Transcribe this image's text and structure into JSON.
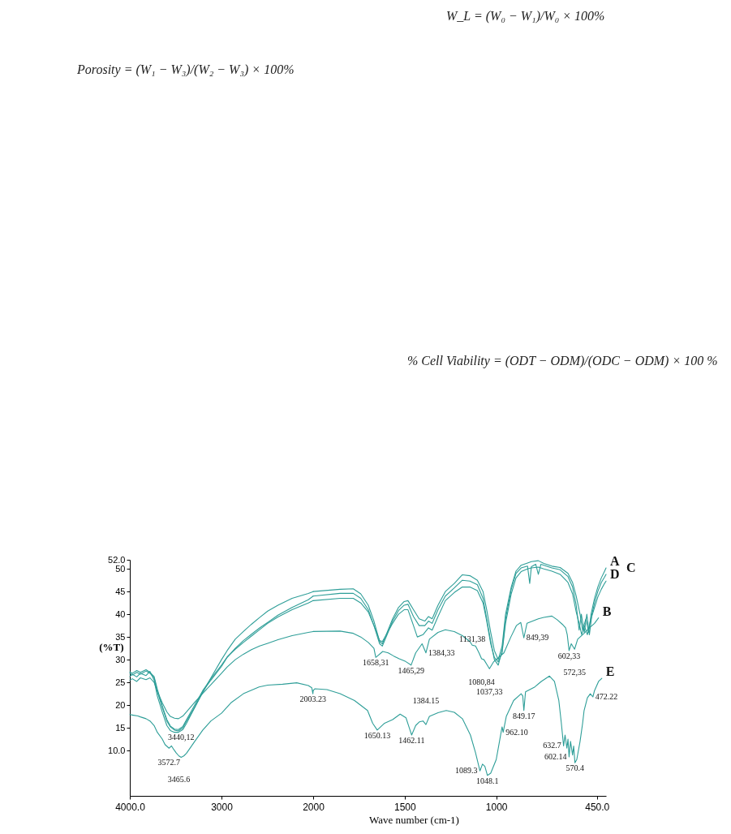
{
  "chart_data": [
    {
      "type": "line",
      "ylabel": "(%T)",
      "xlim": [
        4000,
        2000
      ],
      "xticks": [
        {
          "value": 4000,
          "label": "4000.0"
        },
        3000,
        2000
      ],
      "ylim": [
        0,
        52
      ],
      "yticks": [
        {
          "value": 52,
          "label": "52.0"
        },
        50,
        45,
        40,
        35,
        30,
        25,
        20,
        15,
        {
          "value": 10,
          "label": "10.0"
        }
      ],
      "grid": false,
      "series": [
        {
          "color": "#2e9e98",
          "x": [
            4000,
            3973,
            3924,
            3885,
            3823,
            3780,
            3735,
            3700,
            3646,
            3596,
            3558,
            3513,
            3469,
            3421,
            3381,
            3292,
            3204,
            3115,
            3000,
            2938,
            2850,
            2761,
            2673,
            2584,
            2496,
            2384,
            2230,
            2053,
            2000
          ],
          "values": [
            27.0,
            26.6,
            27.2,
            26.8,
            27.5,
            27.0,
            26.0,
            23.0,
            19.5,
            16.5,
            15.2,
            14.5,
            14.3,
            15.0,
            16.5,
            19.5,
            22.8,
            26.0,
            30.0,
            32.0,
            34.5,
            36.2,
            37.8,
            39.3,
            40.7,
            42.0,
            43.5,
            44.6,
            45.0
          ]
        },
        {
          "color": "#2e9e98",
          "x": [
            4000,
            3973,
            3924,
            3885,
            3823,
            3780,
            3735,
            3700,
            3646,
            3596,
            3558,
            3513,
            3469,
            3421,
            3381,
            3292,
            3204,
            3115,
            3000,
            2938,
            2850,
            2761,
            2673,
            2584,
            2496,
            2384,
            2230,
            2053,
            2000
          ],
          "values": [
            25.5,
            25.8,
            25.2,
            26.0,
            25.6,
            26.0,
            25.0,
            23.0,
            20.5,
            18.5,
            17.5,
            17.1,
            17.0,
            17.6,
            18.5,
            20.6,
            22.6,
            24.5,
            27.0,
            28.4,
            30.0,
            31.2,
            32.2,
            33.0,
            33.6,
            34.4,
            35.3,
            36.0,
            36.2
          ]
        },
        {
          "color": "#2e9e98",
          "x": [
            4000,
            3973,
            3924,
            3885,
            3823,
            3780,
            3735,
            3700,
            3646,
            3596,
            3558,
            3513,
            3469,
            3421,
            3381,
            3292,
            3204,
            3115,
            3000,
            2938,
            2850,
            2761,
            2673,
            2584,
            2496,
            2384,
            2230,
            2053,
            2000
          ],
          "values": [
            26.3,
            26.8,
            26.2,
            27.0,
            26.5,
            27.4,
            25.5,
            22.0,
            18.5,
            15.5,
            14.4,
            14.0,
            14.0,
            14.6,
            16.0,
            19.5,
            23.0,
            25.5,
            28.5,
            30.5,
            32.5,
            34.2,
            35.6,
            37.0,
            38.2,
            39.8,
            41.5,
            43.2,
            44.0
          ]
        },
        {
          "color": "#2e9e98",
          "x": [
            4000,
            3973,
            3924,
            3885,
            3823,
            3780,
            3735,
            3700,
            3646,
            3596,
            3558,
            3513,
            3469,
            3421,
            3381,
            3292,
            3204,
            3115,
            3000,
            2938,
            2850,
            2761,
            2673,
            2584,
            2496,
            2384,
            2230,
            2053,
            2000
          ],
          "values": [
            27.3,
            27.0,
            27.6,
            27.2,
            27.8,
            27.2,
            26.3,
            23.5,
            19.8,
            16.8,
            15.4,
            14.7,
            14.6,
            15.3,
            16.8,
            20.0,
            23.2,
            25.8,
            28.8,
            30.6,
            32.3,
            33.8,
            35.2,
            36.6,
            38.0,
            39.4,
            41.0,
            42.5,
            43.0
          ]
        },
        {
          "color": "#2e9e98",
          "x": [
            4000,
            3973,
            3912,
            3885,
            3823,
            3780,
            3735,
            3700,
            3646,
            3616,
            3572,
            3545,
            3520,
            3495,
            3465,
            3440,
            3411,
            3381,
            3292,
            3204,
            3115,
            3000,
            2897,
            2761,
            2590,
            2496,
            2333,
            2179,
            2053,
            2015,
            2003,
            2000
          ],
          "values": [
            17.9,
            17.8,
            17.6,
            17.4,
            17.0,
            16.5,
            15.5,
            14.0,
            12.5,
            11.3,
            10.5,
            11.0,
            10.2,
            9.5,
            8.8,
            8.5,
            8.8,
            9.4,
            12.0,
            14.5,
            16.5,
            18.2,
            20.5,
            22.5,
            24.0,
            24.4,
            24.6,
            24.9,
            24.3,
            23.8,
            22.5,
            23.2
          ]
        }
      ],
      "annotations": [
        "W_L = (W₀ − W₁)/W₀ × 100%",
        "Porosity = (W₁ − W₃)/(W₂ − W₃) × 100%",
        "% Cell Viability = (ODT − ODM)/(ODC − ODM) × 100 %",
        {
          "text": "3440,12",
          "x": 3440,
          "y": 14.2
        },
        {
          "text": "3572.7",
          "x": 3572,
          "y": 10.5
        },
        {
          "text": "3465.6",
          "x": 3465,
          "y": 8.8
        },
        {
          "text": "2003.23",
          "x": 2003,
          "y": 22.5
        }
      ]
    },
    {
      "type": "line",
      "xlabel": "Wave number (cm-1)",
      "xlim": [
        2000,
        400
      ],
      "xticks": [
        1500,
        1000,
        {
          "value": 450,
          "label": "450.0"
        }
      ],
      "ylim": [
        0,
        52
      ],
      "tick_labels": "x",
      "grid": false,
      "series": [
        {
          "name": "A",
          "color": "#2e9e98",
          "x": [
            2000,
            1853,
            1781,
            1740,
            1699,
            1668,
            1637,
            1622,
            1596,
            1566,
            1534,
            1503,
            1482,
            1452,
            1421,
            1390,
            1370,
            1350,
            1318,
            1278,
            1229,
            1185,
            1144,
            1103,
            1072,
            1052,
            1030,
            1010,
            989,
            968,
            949,
            918,
            892,
            864,
            829,
            808,
            770,
            740,
            696,
            651,
            608,
            583,
            563,
            542,
            528,
            510,
            495,
            482,
            463,
            445,
            426,
            408,
            400
          ],
          "values": [
            45.0,
            45.5,
            45.6,
            44.5,
            42.0,
            38.5,
            34.0,
            33.5,
            36.0,
            39.0,
            41.5,
            42.8,
            43.0,
            41.0,
            39.0,
            38.5,
            39.5,
            39.0,
            42.0,
            45.0,
            46.8,
            48.7,
            48.5,
            47.5,
            45.0,
            41.0,
            36.0,
            32.0,
            30.0,
            33.0,
            40.0,
            46.0,
            49.5,
            50.8,
            51.3,
            51.6,
            51.8,
            51.2,
            50.6,
            50.3,
            49.0,
            47.0,
            44.0,
            40.0,
            36.5,
            39.0,
            36.0,
            40.0,
            43.5,
            46.0,
            48.0,
            49.5,
            50.2
          ]
        },
        {
          "name": "B",
          "color": "#2e9e98",
          "x": [
            2000,
            1853,
            1781,
            1740,
            1699,
            1668,
            1658,
            1620,
            1590,
            1560,
            1530,
            1495,
            1465,
            1440,
            1405,
            1384,
            1365,
            1318,
            1278,
            1229,
            1185,
            1144,
            1131,
            1113,
            1094,
            1080,
            1067,
            1052,
            1037,
            1015,
            958,
            920,
            890,
            866,
            849,
            832,
            770,
            740,
            696,
            667,
            639,
            621,
            612,
            602,
            590,
            572,
            555,
            520,
            491,
            463,
            441
          ],
          "values": [
            36.2,
            36.3,
            35.8,
            35.0,
            33.8,
            32.5,
            30.5,
            31.8,
            31.5,
            30.8,
            30.2,
            29.6,
            28.8,
            31.5,
            33.5,
            31.5,
            34.5,
            36.0,
            36.6,
            36.2,
            35.3,
            34.0,
            33.2,
            33.0,
            31.5,
            30.2,
            30.0,
            29.0,
            28.0,
            29.5,
            31.5,
            35.0,
            37.5,
            38.2,
            34.8,
            38.0,
            39.0,
            39.3,
            39.6,
            38.8,
            37.8,
            37.0,
            35.5,
            32.0,
            33.5,
            32.3,
            34.5,
            35.8,
            37.0,
            38.0,
            39.2
          ]
        },
        {
          "name": "C",
          "color": "#2e9e98",
          "x": [
            2000,
            1853,
            1781,
            1740,
            1699,
            1668,
            1637,
            1622,
            1596,
            1566,
            1534,
            1503,
            1482,
            1452,
            1421,
            1390,
            1370,
            1350,
            1318,
            1278,
            1229,
            1185,
            1144,
            1103,
            1072,
            1052,
            1030,
            1010,
            989,
            968,
            949,
            918,
            892,
            864,
            829,
            817,
            808,
            784,
            770,
            756,
            740,
            696,
            651,
            608,
            583,
            563,
            547,
            535,
            519,
            505,
            491,
            477,
            463,
            445,
            426,
            408,
            400
          ],
          "values": [
            44.0,
            44.6,
            44.6,
            43.5,
            41.0,
            37.5,
            33.5,
            33.0,
            35.5,
            38.5,
            40.8,
            42.0,
            42.2,
            39.5,
            37.5,
            37.5,
            38.5,
            38.0,
            41.0,
            44.0,
            45.8,
            47.5,
            47.3,
            46.5,
            43.5,
            39.0,
            34.0,
            30.0,
            28.8,
            32.0,
            39.0,
            45.5,
            49.0,
            50.2,
            50.6,
            46.8,
            50.5,
            51.0,
            48.8,
            51.0,
            50.8,
            50.2,
            49.8,
            48.3,
            46.0,
            42.0,
            36.5,
            40.0,
            36.0,
            40.0,
            35.5,
            40.0,
            42.5,
            45.0,
            47.0,
            48.2,
            48.8
          ]
        },
        {
          "name": "D",
          "color": "#2e9e98",
          "x": [
            2000,
            1853,
            1781,
            1740,
            1699,
            1668,
            1637,
            1622,
            1596,
            1566,
            1534,
            1503,
            1482,
            1452,
            1431,
            1400,
            1370,
            1350,
            1318,
            1278,
            1229,
            1185,
            1144,
            1103,
            1072,
            1052,
            1030,
            1010,
            989,
            968,
            949,
            918,
            892,
            864,
            829,
            808,
            770,
            740,
            696,
            651,
            608,
            583,
            563,
            547,
            533,
            519,
            502,
            486,
            463,
            445,
            426,
            408,
            400
          ],
          "values": [
            43.0,
            43.5,
            43.5,
            42.5,
            40.5,
            37.5,
            34.2,
            34.0,
            35.8,
            38.0,
            40.0,
            41.0,
            41.0,
            37.5,
            35.0,
            35.5,
            37.0,
            36.5,
            39.5,
            43.0,
            44.8,
            46.0,
            46.0,
            45.2,
            42.5,
            38.5,
            33.5,
            30.5,
            29.5,
            31.5,
            38.0,
            44.5,
            48.0,
            49.4,
            50.0,
            50.2,
            50.4,
            50.0,
            49.5,
            48.8,
            47.0,
            44.5,
            40.5,
            38.0,
            35.5,
            37.5,
            35.5,
            38.5,
            41.5,
            43.8,
            45.5,
            46.8,
            47.3
          ]
        },
        {
          "name": "E",
          "color": "#2e9e98",
          "x": [
            2000,
            1990,
            1925,
            1853,
            1774,
            1703,
            1675,
            1650,
            1610,
            1566,
            1525,
            1493,
            1475,
            1462,
            1440,
            1420,
            1400,
            1384,
            1365,
            1318,
            1273,
            1229,
            1185,
            1141,
            1113,
            1089,
            1075,
            1062,
            1048,
            1030,
            1000,
            980,
            968,
            962,
            945,
            905,
            864,
            855,
            849,
            840,
            789,
            754,
            709,
            682,
            658,
            645,
            632,
            624,
            614,
            608,
            602,
            594,
            583,
            577,
            570,
            560,
            542,
            528,
            520,
            502,
            486,
            472,
            463,
            441,
            423
          ],
          "values": [
            23.2,
            23.6,
            23.4,
            22.5,
            21.0,
            18.8,
            16.0,
            14.5,
            16.0,
            16.8,
            18.0,
            17.2,
            15.0,
            13.4,
            15.5,
            16.3,
            16.5,
            15.7,
            17.5,
            18.3,
            18.8,
            18.4,
            17.0,
            13.4,
            9.5,
            5.5,
            7.0,
            6.5,
            4.5,
            5.0,
            8.0,
            12.5,
            15.2,
            14.0,
            17.5,
            21.0,
            22.5,
            22.0,
            18.8,
            22.9,
            24.0,
            25.2,
            26.4,
            25.2,
            21.0,
            16.3,
            11.0,
            13.4,
            10.5,
            12.5,
            8.6,
            12.0,
            9.0,
            11.0,
            7.3,
            8.0,
            12.0,
            16.0,
            18.8,
            21.6,
            22.5,
            21.8,
            23.2,
            25.2,
            25.9
          ]
        }
      ],
      "annotations": [
        {
          "text": "1658,31",
          "x": 1658,
          "y": 30.5
        },
        {
          "text": "1465,29",
          "x": 1465,
          "y": 28.8
        },
        {
          "text": "1384,33",
          "x": 1384,
          "y": 31.5
        },
        {
          "text": "1131,38",
          "x": 1131,
          "y": 33.2
        },
        {
          "text": "1080,84",
          "x": 1080,
          "y": 30.2
        },
        {
          "text": "1037,33",
          "x": 1037,
          "y": 28.0
        },
        {
          "text": "849,39",
          "x": 849,
          "y": 34.8
        },
        {
          "text": "602,33",
          "x": 602,
          "y": 32.0
        },
        {
          "text": "572,35",
          "x": 572,
          "y": 32.3
        },
        {
          "text": "1650.13",
          "x": 1650,
          "y": 14.5
        },
        {
          "text": "1462.11",
          "x": 1462,
          "y": 13.4
        },
        {
          "text": "1384.15",
          "x": 1384,
          "y": 15.7
        },
        {
          "text": "1089.3",
          "x": 1089,
          "y": 5.5
        },
        {
          "text": "1048.1",
          "x": 1048,
          "y": 4.5
        },
        {
          "text": "962.10",
          "x": 962,
          "y": 14.0
        },
        {
          "text": "849.17",
          "x": 849,
          "y": 18.8
        },
        {
          "text": "632.7",
          "x": 632,
          "y": 11.0
        },
        {
          "text": "602.14",
          "x": 602,
          "y": 8.6
        },
        {
          "text": "570.4",
          "x": 570,
          "y": 7.3
        },
        {
          "text": "472.22",
          "x": 472,
          "y": 21.8
        }
      ]
    }
  ]
}
